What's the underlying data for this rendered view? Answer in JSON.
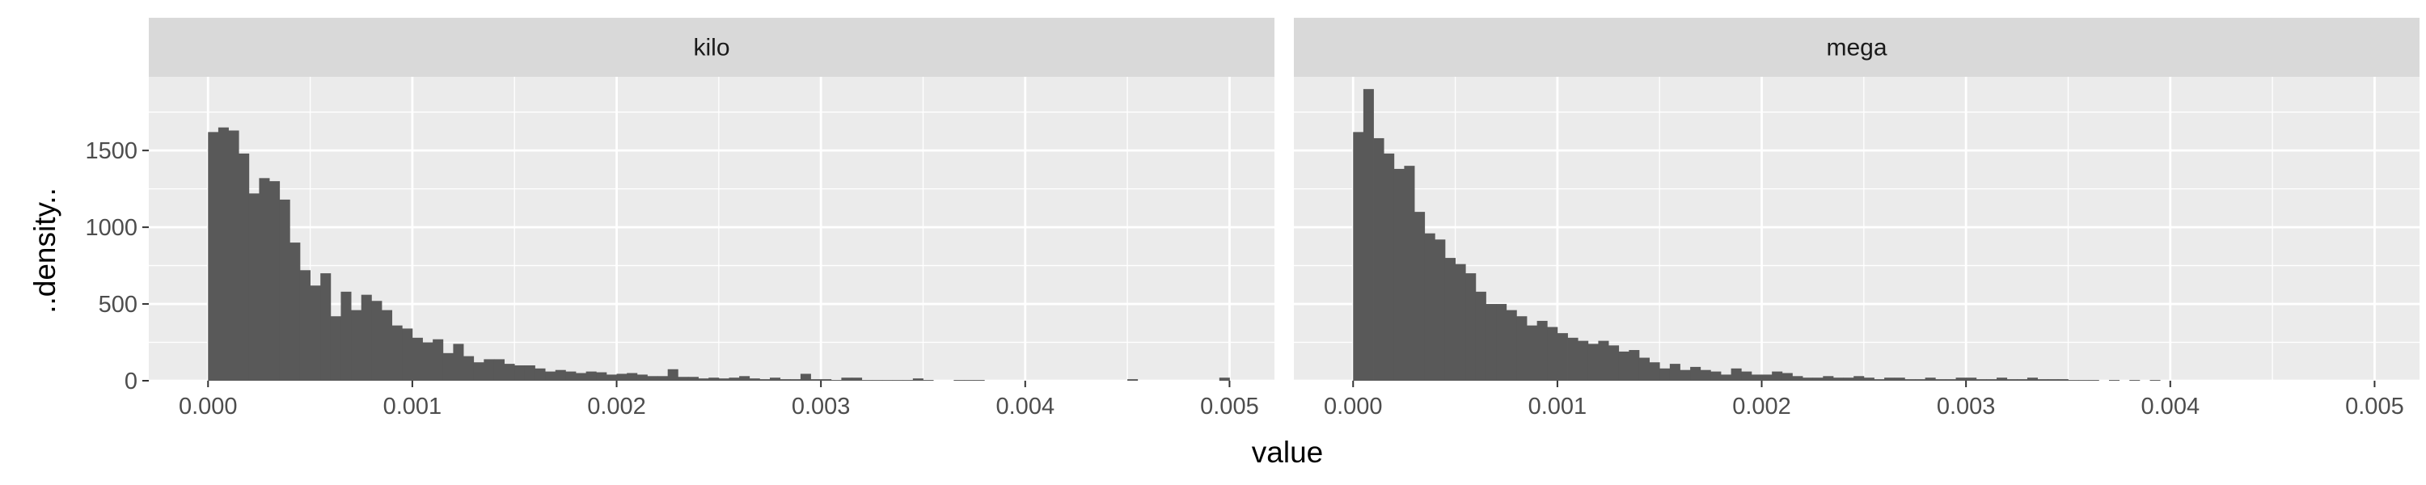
{
  "chart_data": {
    "type": "bar",
    "xlabel": "value",
    "ylabel": "..density..",
    "x_range": [
      -0.00029,
      0.00522
    ],
    "y_range": [
      0,
      1980
    ],
    "x_ticks": [
      0.0,
      0.001,
      0.002,
      0.003,
      0.004,
      0.005
    ],
    "x_tick_labels": [
      "0.000",
      "0.001",
      "0.002",
      "0.003",
      "0.004",
      "0.005"
    ],
    "y_ticks": [
      0,
      500,
      1000,
      1500
    ],
    "y_tick_labels": [
      "0",
      "500",
      "1000",
      "1500"
    ],
    "bin_width": 5e-05,
    "bin_start": 0.0,
    "grid": true,
    "colors": {
      "bar": "#595959",
      "panel_bg": "#ebebeb",
      "strip_bg": "#d9d9d9",
      "grid": "#ffffff",
      "tick_text": "#4d4d4d"
    },
    "panels": [
      {
        "strip_label": "kilo",
        "values": [
          1620,
          1650,
          1630,
          1480,
          1220,
          1320,
          1300,
          1180,
          900,
          720,
          620,
          700,
          420,
          580,
          460,
          560,
          520,
          460,
          360,
          340,
          280,
          250,
          270,
          180,
          240,
          160,
          120,
          140,
          140,
          110,
          100,
          100,
          80,
          60,
          70,
          60,
          50,
          60,
          55,
          40,
          45,
          50,
          40,
          30,
          30,
          75,
          25,
          25,
          15,
          20,
          15,
          20,
          30,
          15,
          10,
          20,
          10,
          10,
          45,
          10,
          10,
          5,
          20,
          20,
          5,
          5,
          5,
          5,
          5,
          15,
          5,
          0,
          0,
          5,
          5,
          5,
          0,
          0,
          0,
          0,
          0,
          0,
          0,
          0,
          0,
          0,
          0,
          0,
          0,
          0,
          10,
          0,
          0,
          0,
          0,
          0,
          0,
          0,
          0,
          20
        ]
      },
      {
        "strip_label": "mega",
        "values": [
          1620,
          1900,
          1580,
          1480,
          1380,
          1400,
          1100,
          960,
          920,
          800,
          760,
          700,
          580,
          500,
          500,
          460,
          420,
          360,
          390,
          350,
          310,
          280,
          260,
          240,
          260,
          230,
          190,
          200,
          150,
          120,
          80,
          110,
          70,
          90,
          70,
          60,
          40,
          80,
          60,
          40,
          40,
          60,
          50,
          30,
          20,
          20,
          30,
          20,
          20,
          30,
          20,
          10,
          20,
          20,
          10,
          10,
          20,
          10,
          10,
          20,
          20,
          10,
          10,
          20,
          10,
          10,
          20,
          10,
          10,
          10,
          5,
          5,
          5,
          0,
          5,
          0,
          5,
          0,
          5,
          0,
          0,
          0,
          0,
          0,
          0,
          0,
          0,
          0,
          0,
          0,
          0,
          0,
          0,
          0,
          0,
          0,
          0,
          0,
          0,
          0,
          0,
          0,
          0,
          0,
          0,
          0,
          0,
          0,
          10
        ]
      }
    ]
  }
}
